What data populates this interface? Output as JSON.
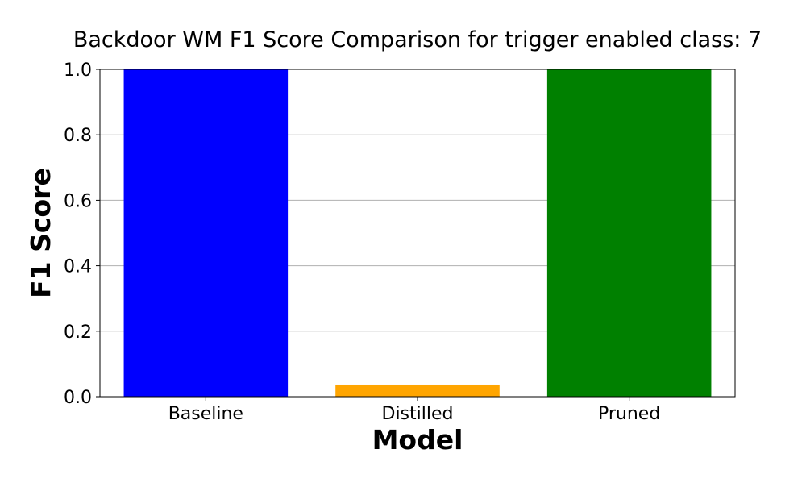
{
  "chart_data": {
    "type": "bar",
    "title": "Backdoor WM F1 Score Comparison for trigger enabled class: 7",
    "xlabel": "Model",
    "ylabel": "F1 Score",
    "categories": [
      "Baseline",
      "Distilled",
      "Pruned"
    ],
    "values": [
      1.0,
      0.037,
      1.0
    ],
    "bar_colors": [
      "#0000ff",
      "#ffa500",
      "#008000"
    ],
    "ylim": [
      0,
      1.0
    ],
    "yticks": [
      "0.0",
      "0.2",
      "0.4",
      "0.6",
      "0.8",
      "1.0"
    ],
    "grid": "horizontal",
    "legend": "none"
  }
}
